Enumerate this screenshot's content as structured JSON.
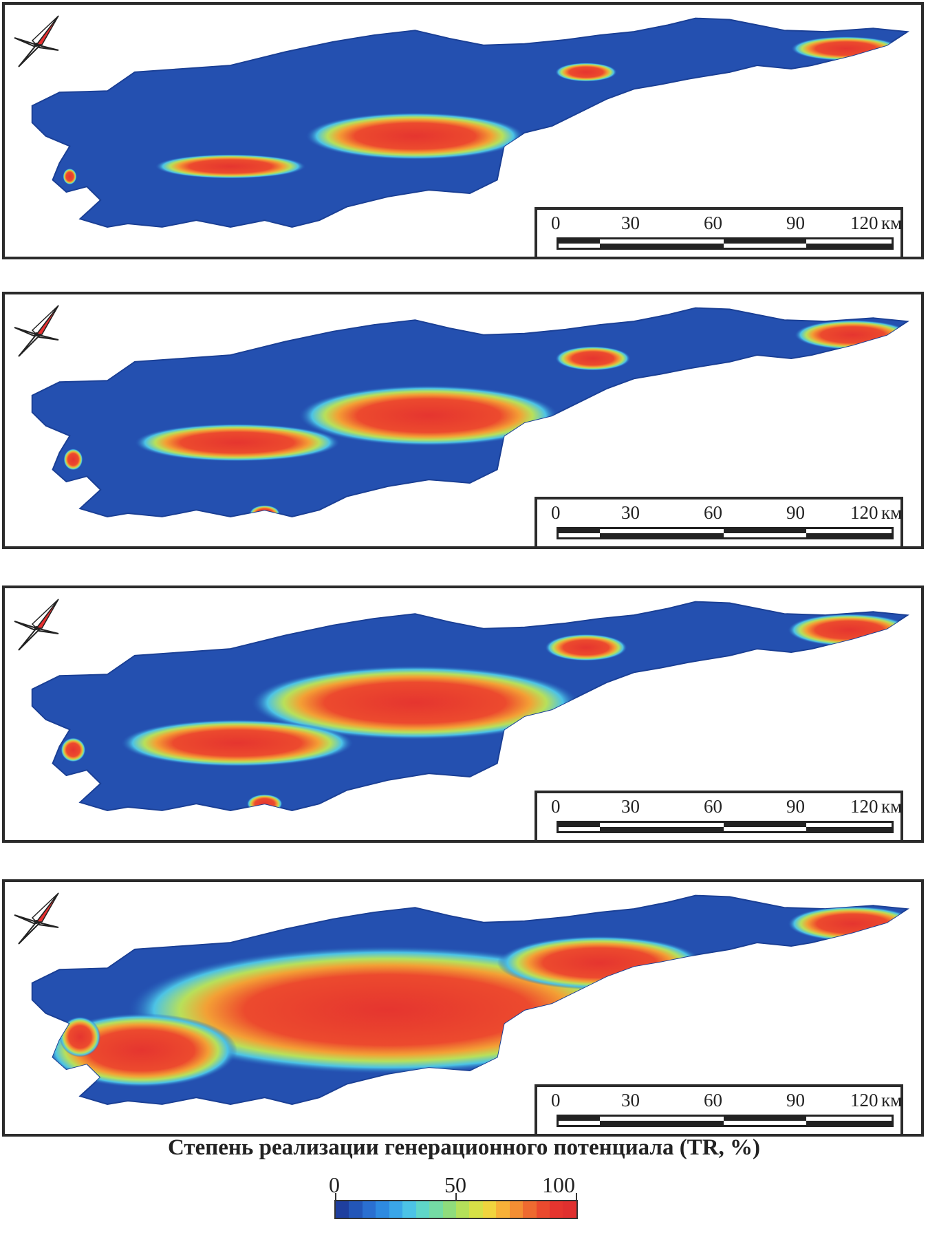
{
  "map_panels": [
    {
      "id": "panel-1",
      "scale": {
        "labels": [
          "0",
          "30",
          "60",
          "90",
          "120"
        ],
        "unit": "км"
      },
      "tr_extent": "low"
    },
    {
      "id": "panel-2",
      "scale": {
        "labels": [
          "0",
          "30",
          "60",
          "90",
          "120"
        ],
        "unit": "км"
      },
      "tr_extent": "moderate"
    },
    {
      "id": "panel-3",
      "scale": {
        "labels": [
          "0",
          "30",
          "60",
          "90",
          "120"
        ],
        "unit": "км"
      },
      "tr_extent": "elevated"
    },
    {
      "id": "panel-4",
      "scale": {
        "labels": [
          "0",
          "30",
          "60",
          "90",
          "120"
        ],
        "unit": "км"
      },
      "tr_extent": "high"
    }
  ],
  "legend": {
    "title": "Степень реализации генерационного потенциала (TR, %)",
    "min_label": "0",
    "mid_label": "50",
    "max_label": "100",
    "colors": [
      "#1f3f9e",
      "#2356b8",
      "#2a6fd0",
      "#2e8ae0",
      "#3aa6e8",
      "#4cc3e6",
      "#5fd6c8",
      "#74dba4",
      "#8fdc7c",
      "#b4e05a",
      "#d6e047",
      "#f0d43e",
      "#f7b138",
      "#f38e33",
      "#ee6a30",
      "#ea4a2e",
      "#e5352f",
      "#e0302f"
    ]
  },
  "icons": [
    "compass-rose-icon"
  ]
}
